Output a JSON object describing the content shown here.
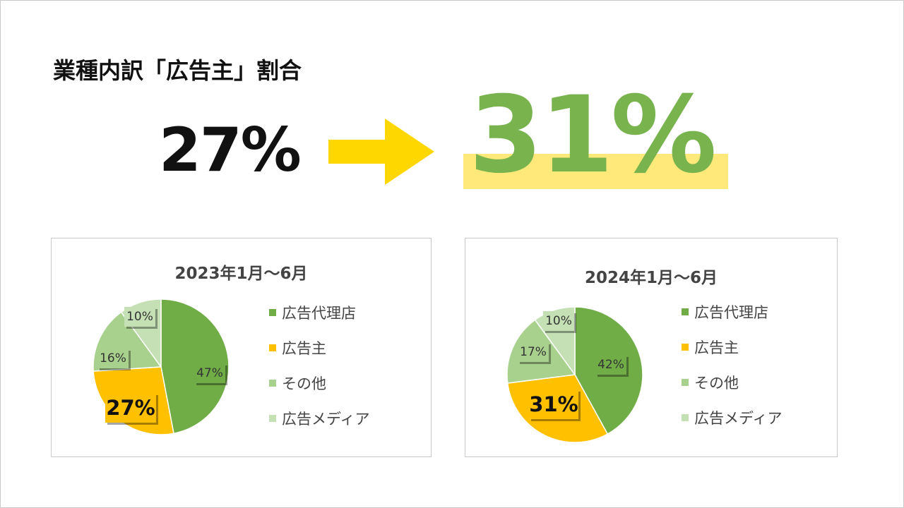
{
  "headline": "業種内訳「広告主」割合",
  "before_value": "27%",
  "after_value": "31%",
  "colors": {
    "agency": "#70ad47",
    "advertiser": "#ffc000",
    "other": "#a9d18e",
    "media": "#c5e0b4",
    "arrow": "#ffd700",
    "highlight": "#ffe97a",
    "after_text": "#78b34e"
  },
  "legend": [
    "広告代理店",
    "広告主",
    "その他",
    "広告メディア"
  ],
  "chart_data": [
    {
      "type": "pie",
      "title": "2023年1月～6月",
      "slices": [
        {
          "label": "広告代理店",
          "value": 47,
          "text": "47%"
        },
        {
          "label": "広告主",
          "value": 27,
          "text": "27%"
        },
        {
          "label": "その他",
          "value": 16,
          "text": "16%"
        },
        {
          "label": "広告メディア",
          "value": 10,
          "text": "10%"
        }
      ]
    },
    {
      "type": "pie",
      "title": "2024年1月～6月",
      "slices": [
        {
          "label": "広告代理店",
          "value": 42,
          "text": "42%"
        },
        {
          "label": "広告主",
          "value": 31,
          "text": "31%"
        },
        {
          "label": "その他",
          "value": 17,
          "text": "17%"
        },
        {
          "label": "広告メディア",
          "value": 10,
          "text": "10%"
        }
      ]
    }
  ]
}
